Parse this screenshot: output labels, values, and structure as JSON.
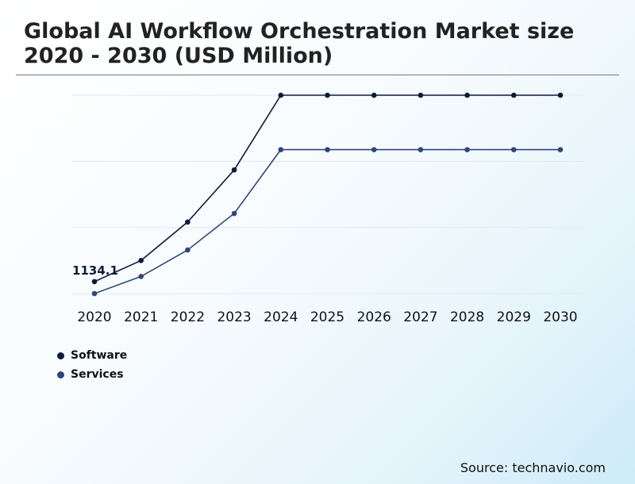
{
  "chart_data": {
    "type": "line",
    "title": "Global AI Workflow Orchestration Market size 2020 - 2030 (USD Million)",
    "categories": [
      "2020",
      "2021",
      "2022",
      "2023",
      "2024",
      "2025",
      "2026",
      "2027",
      "2028",
      "2029",
      "2030"
    ],
    "series": [
      {
        "name": "Software",
        "color": "#0d1b3e",
        "values": [
          1134.1,
          1405,
          1900,
          2570,
          3530,
          3530,
          3530,
          3530,
          3530,
          3530,
          3530
        ]
      },
      {
        "name": "Services",
        "color": "#2f4778",
        "values": [
          980,
          1200,
          1540,
          2010,
          2830,
          2830,
          2830,
          2830,
          2830,
          2830,
          2830
        ]
      }
    ],
    "data_labels": [
      {
        "series": 0,
        "index": 0,
        "text": "1134.1"
      }
    ],
    "ylim": [
      980,
      3530
    ],
    "grid": true,
    "legend_position": "bottom-left"
  },
  "source": "Source: technavio.com"
}
